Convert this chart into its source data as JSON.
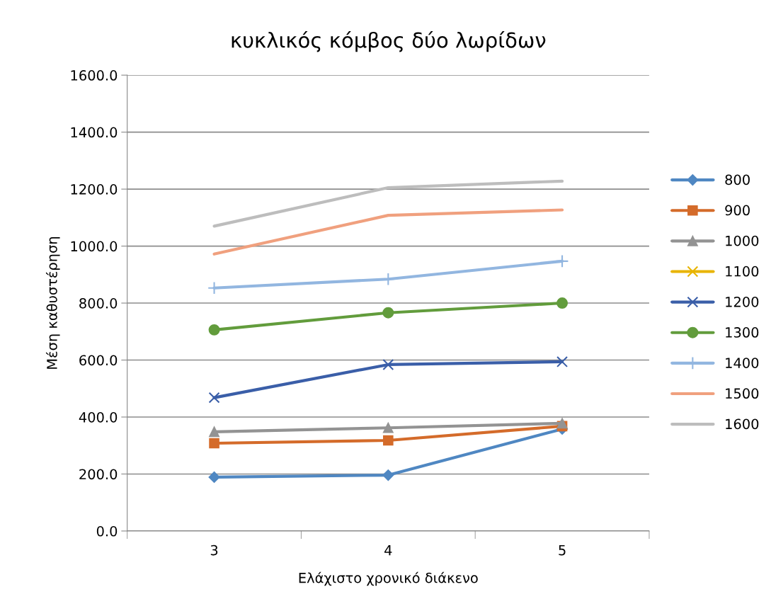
{
  "chart_data": {
    "type": "line",
    "title": "κυκλικός κόμβος δύο λωρίδων",
    "xlabel": "Ελάχιστο χρονικό διάκενο",
    "ylabel": "Μέση καθυστέρηση",
    "categories": [
      "3",
      "4",
      "5"
    ],
    "ylim": [
      0,
      1600
    ],
    "yticks": [
      {
        "value": 0,
        "label": "0.0"
      },
      {
        "value": 200,
        "label": "200.0"
      },
      {
        "value": 400,
        "label": "400.0"
      },
      {
        "value": 600,
        "label": "600.0"
      },
      {
        "value": 800,
        "label": "800.0"
      },
      {
        "value": 1000,
        "label": "1000.0"
      },
      {
        "value": 1200,
        "label": "1200.0"
      },
      {
        "value": 1400,
        "label": "1400.0"
      },
      {
        "value": 1600,
        "label": "1600.0"
      }
    ],
    "grid": "y",
    "legend": "right",
    "series": [
      {
        "name": "800",
        "color": "#4f87c2",
        "marker": "diamond",
        "values": [
          189,
          196,
          358
        ]
      },
      {
        "name": "900",
        "color": "#d46b2a",
        "marker": "square",
        "values": [
          308,
          318,
          368
        ]
      },
      {
        "name": "1000",
        "color": "#939393",
        "marker": "triangle",
        "values": [
          348,
          362,
          378
        ]
      },
      {
        "name": "1100",
        "color": "#e8b400",
        "marker": "cross",
        "values": [
          null,
          null,
          null
        ]
      },
      {
        "name": "1200",
        "color": "#3a5ea8",
        "marker": "cross",
        "values": [
          468,
          584,
          594
        ]
      },
      {
        "name": "1300",
        "color": "#629c3c",
        "marker": "circle",
        "values": [
          706,
          766,
          800
        ]
      },
      {
        "name": "1400",
        "color": "#92b6e0",
        "marker": "plus",
        "values": [
          853,
          884,
          947
        ]
      },
      {
        "name": "1500",
        "color": "#f0a07e",
        "marker": "none",
        "values": [
          972,
          1108,
          1127
        ]
      },
      {
        "name": "1600",
        "color": "#bdbdbd",
        "marker": "none",
        "values": [
          1070,
          1205,
          1228
        ]
      }
    ]
  }
}
